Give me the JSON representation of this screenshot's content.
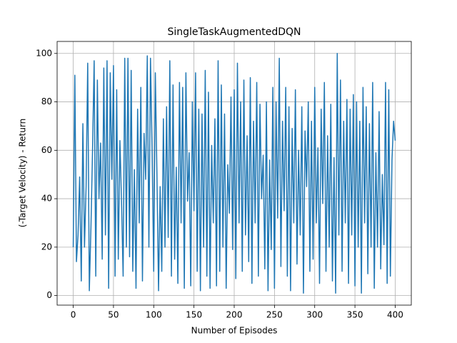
{
  "chart_data": {
    "type": "line",
    "title": "SingleTaskAugmentedDQN",
    "xlabel": "Number of Episodes",
    "ylabel": "(-Target Velocity) - Return",
    "color": "#1f77b4",
    "grid": true,
    "xlim": [
      -20,
      420
    ],
    "ylim": [
      -3.95,
      104.95
    ],
    "xticks": [
      0,
      50,
      100,
      150,
      200,
      250,
      300,
      350,
      400
    ],
    "yticks": [
      0,
      20,
      40,
      60,
      80,
      100
    ],
    "x": [
      0,
      2,
      4,
      6,
      8,
      10,
      12,
      14,
      16,
      18,
      20,
      22,
      24,
      26,
      28,
      30,
      32,
      34,
      36,
      38,
      40,
      42,
      44,
      46,
      48,
      50,
      52,
      54,
      56,
      58,
      60,
      62,
      64,
      66,
      68,
      70,
      72,
      74,
      76,
      78,
      80,
      82,
      84,
      86,
      88,
      90,
      92,
      94,
      96,
      98,
      100,
      102,
      104,
      106,
      108,
      110,
      112,
      114,
      116,
      118,
      120,
      122,
      124,
      126,
      128,
      130,
      132,
      134,
      136,
      138,
      140,
      142,
      144,
      146,
      148,
      150,
      152,
      154,
      156,
      158,
      160,
      162,
      164,
      166,
      168,
      170,
      172,
      174,
      176,
      178,
      180,
      182,
      184,
      186,
      188,
      190,
      192,
      194,
      196,
      198,
      200,
      202,
      204,
      206,
      208,
      210,
      212,
      214,
      216,
      218,
      220,
      222,
      224,
      226,
      228,
      230,
      232,
      234,
      236,
      238,
      240,
      242,
      244,
      246,
      248,
      250,
      252,
      254,
      256,
      258,
      260,
      262,
      264,
      266,
      268,
      270,
      272,
      274,
      276,
      278,
      280,
      282,
      284,
      286,
      288,
      290,
      292,
      294,
      296,
      298,
      300,
      302,
      304,
      306,
      308,
      310,
      312,
      314,
      316,
      318,
      320,
      322,
      324,
      326,
      328,
      330,
      332,
      334,
      336,
      338,
      340,
      342,
      344,
      346,
      348,
      350,
      352,
      354,
      356,
      358,
      360,
      362,
      364,
      366,
      368,
      370,
      372,
      374,
      376,
      378,
      380,
      382,
      384,
      386,
      388,
      390,
      392,
      394,
      396,
      398,
      400
    ],
    "values": [
      20,
      91,
      14,
      25,
      49,
      6,
      71,
      20,
      45,
      96,
      2,
      28,
      60,
      97,
      8,
      89,
      40,
      63,
      15,
      94,
      25,
      97,
      3,
      92,
      48,
      95,
      8,
      85,
      15,
      64,
      39,
      8,
      98,
      20,
      98,
      16,
      93,
      10,
      52,
      3,
      77,
      30,
      86,
      6,
      67,
      48,
      99,
      20,
      98,
      60,
      10,
      92,
      50,
      2,
      45,
      10,
      73,
      20,
      78,
      24,
      97,
      8,
      87,
      15,
      53,
      5,
      88,
      30,
      86,
      3,
      92,
      39,
      59,
      4,
      80,
      35,
      92,
      10,
      77,
      2,
      75,
      20,
      93,
      8,
      84,
      3,
      62,
      30,
      73,
      4,
      97,
      10,
      87,
      20,
      75,
      3,
      54,
      34,
      82,
      19,
      85,
      7,
      96,
      30,
      80,
      10,
      89,
      25,
      66,
      14,
      90,
      5,
      72,
      30,
      88,
      8,
      79,
      40,
      58,
      11,
      80,
      2,
      56,
      19,
      86,
      3,
      80,
      32,
      98,
      12,
      72,
      35,
      86,
      8,
      78,
      2,
      69,
      30,
      85,
      13,
      60,
      25,
      78,
      1,
      68,
      45,
      80,
      10,
      72,
      15,
      86,
      30,
      61,
      5,
      77,
      38,
      88,
      10,
      66,
      20,
      79,
      6,
      57,
      1,
      100,
      25,
      89,
      10,
      72,
      30,
      81,
      5,
      77,
      25,
      83,
      4,
      80,
      20,
      72,
      1,
      86,
      30,
      78,
      9,
      71,
      20,
      88,
      3,
      59,
      20,
      76,
      11,
      50,
      21,
      88,
      5,
      85,
      8,
      56,
      72,
      64
    ]
  }
}
